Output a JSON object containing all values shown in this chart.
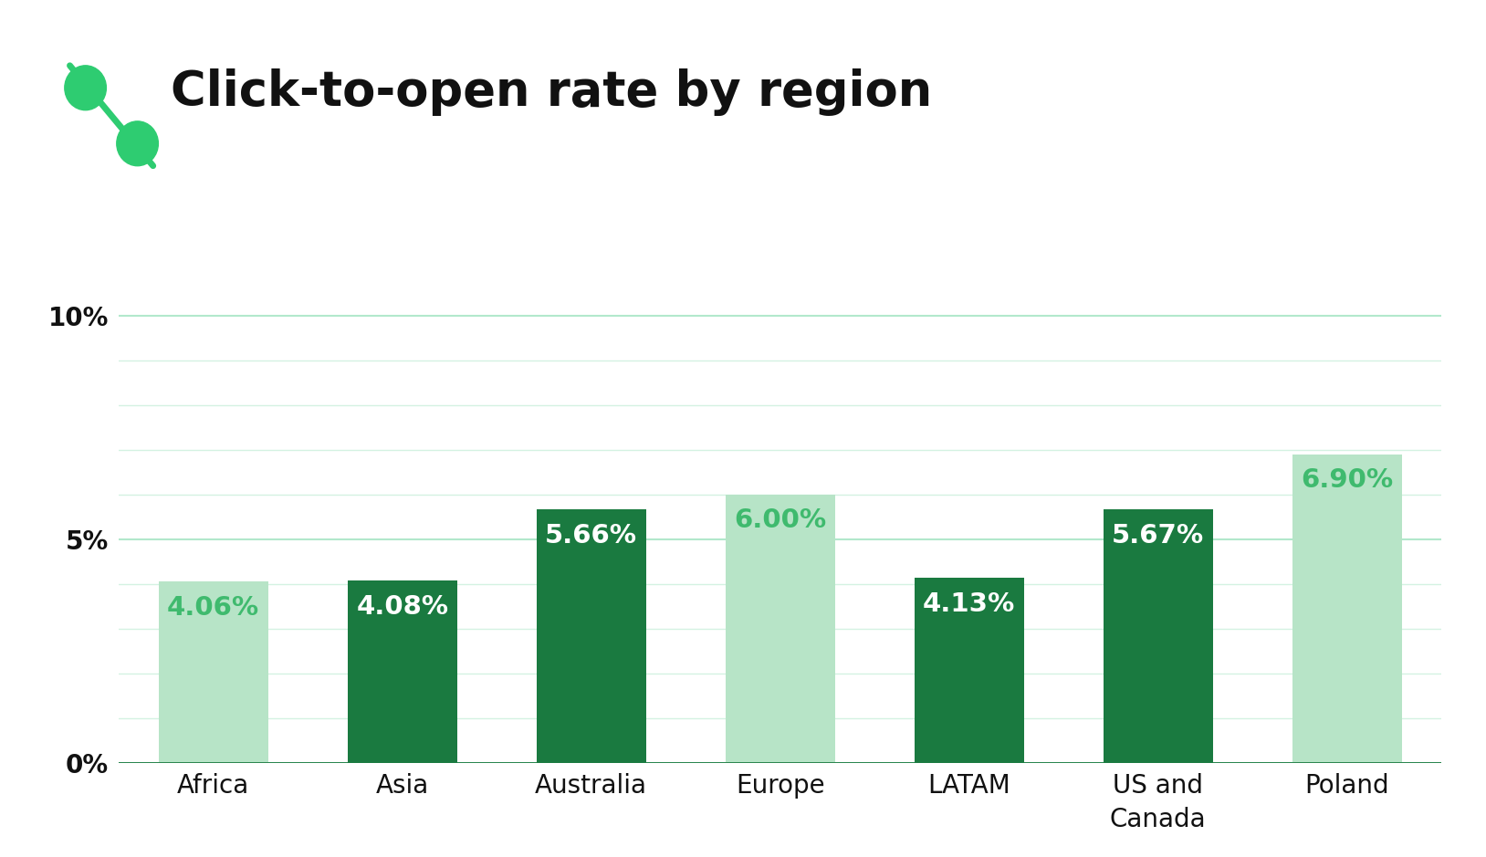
{
  "categories": [
    "Africa",
    "Asia",
    "Australia",
    "Europe",
    "LATAM",
    "US and\nCanada",
    "Poland"
  ],
  "values": [
    4.06,
    4.08,
    5.66,
    6.0,
    4.13,
    5.67,
    6.9
  ],
  "labels": [
    "4.06%",
    "4.08%",
    "5.66%",
    "6.00%",
    "4.13%",
    "5.67%",
    "6.90%"
  ],
  "bar_colors": [
    "#b7e4c7",
    "#1a7a40",
    "#1a7a40",
    "#b7e4c7",
    "#1a7a40",
    "#1a7a40",
    "#b7e4c7"
  ],
  "label_colors": [
    "#3fba6e",
    "#ffffff",
    "#ffffff",
    "#3fba6e",
    "#ffffff",
    "#ffffff",
    "#3fba6e"
  ],
  "title": "Click-to-open rate by region",
  "title_fontsize": 38,
  "ylabel_ticks": [
    "0%",
    "5%",
    "10%"
  ],
  "ytick_vals": [
    0,
    5,
    10
  ],
  "ylim": [
    0,
    11.5
  ],
  "grid_color": "#b2e8cc",
  "background_color": "#ffffff",
  "bar_width": 0.58,
  "label_fontsize": 21,
  "tick_fontsize": 20,
  "icon_green": "#2ecc71",
  "title_color": "#111111",
  "axis_line_color": "#1a7a40",
  "extra_grid_color": "#d4f2e2"
}
